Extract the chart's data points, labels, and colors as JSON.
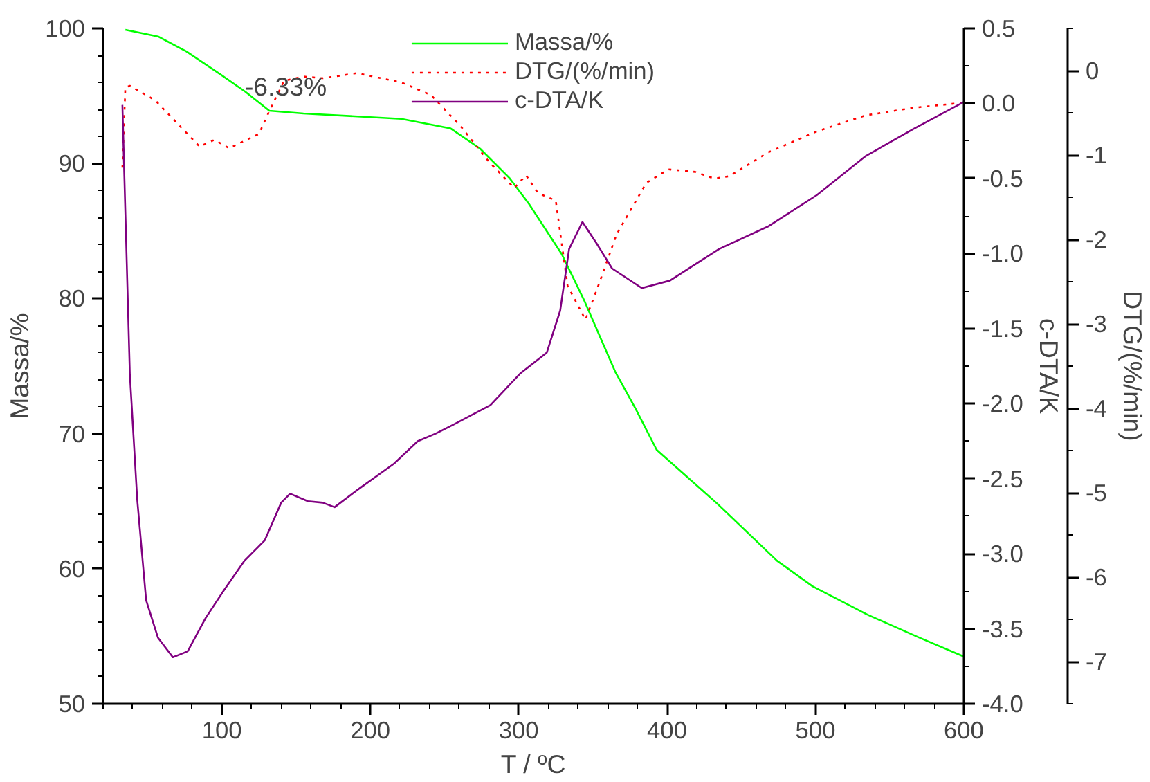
{
  "chart_data": {
    "type": "line",
    "xlabel": "T / ºC",
    "ylabel": "Massa/%",
    "y2label": "c-DTA/K",
    "y3label": "DTG/(%/min)",
    "xlim": [
      20,
      600
    ],
    "xticks": [
      100,
      200,
      300,
      400,
      500,
      600
    ],
    "ylim": [
      50,
      100
    ],
    "yticks": [
      50,
      60,
      70,
      80,
      90,
      100
    ],
    "y2lim": [
      -4.0,
      0.5
    ],
    "y2ticks": [
      {
        "value": -4,
        "label": "-4.0"
      },
      {
        "value": -3.5,
        "label": "-3.5"
      },
      {
        "value": -3,
        "label": "-3.0"
      },
      {
        "value": -2.5,
        "label": "-2.5"
      },
      {
        "value": -2,
        "label": "-2.0"
      },
      {
        "value": -1.5,
        "label": "-1.5"
      },
      {
        "value": -1,
        "label": "-1.0"
      },
      {
        "value": -0.5,
        "label": "-0.5"
      },
      {
        "value": 0,
        "label": "0.0"
      },
      {
        "value": 0.5,
        "label": "0.5"
      }
    ],
    "y3lim": [
      -7.5,
      0.5
    ],
    "y3ticks": [
      -7,
      -6,
      -5,
      -4,
      -3,
      -2,
      -1,
      0
    ],
    "grid": false,
    "legend": "top",
    "marker": "none",
    "annotations": [
      "-6.33%"
    ],
    "series": [
      {
        "name": "Massa/%",
        "color": "#00ff00",
        "line_style": "solid",
        "x": [
          35,
          57,
          76,
          99,
          116,
          132,
          155,
          221,
          254,
          274,
          294,
          307,
          329,
          344,
          365,
          379,
          393,
          434,
          474,
          498,
          535,
          570,
          600
        ],
        "values": [
          99.9,
          99.4,
          98.3,
          96.6,
          95.3,
          93.9,
          93.7,
          93.3,
          92.6,
          91.1,
          88.9,
          87.0,
          83.3,
          79.9,
          74.6,
          71.8,
          68.8,
          64.8,
          60.6,
          58.7,
          56.6,
          54.9,
          53.5
        ]
      },
      {
        "name": "DTG/(%/min)",
        "color": "#ff0000",
        "line_style": "dotted",
        "axis": "y3",
        "x": [
          33,
          35,
          38,
          55,
          85,
          95,
          105,
          125,
          132,
          142,
          155,
          168,
          191,
          221,
          241,
          261,
          280,
          297,
          305,
          313,
          325,
          333,
          345,
          353,
          366,
          386,
          401,
          419,
          432,
          442,
          468,
          501,
          534,
          566,
          600
        ],
        "values": [
          -1.15,
          -0.2,
          -0.18,
          -0.35,
          -0.9,
          -0.82,
          -0.92,
          -0.75,
          -0.48,
          -0.12,
          -0.07,
          -0.09,
          -0.03,
          -0.14,
          -0.29,
          -0.66,
          -1.08,
          -1.39,
          -1.24,
          -1.45,
          -1.54,
          -2.55,
          -2.95,
          -2.58,
          -1.94,
          -1.33,
          -1.17,
          -1.2,
          -1.28,
          -1.25,
          -0.97,
          -0.72,
          -0.53,
          -0.44,
          -0.38
        ]
      },
      {
        "name": "c-DTA/K",
        "color": "#800080",
        "line_style": "solid",
        "axis": "y2",
        "x": [
          33,
          38,
          43,
          49,
          57,
          67,
          77,
          89,
          101,
          115,
          129,
          140,
          146,
          158,
          168,
          176,
          192,
          216,
          232,
          244,
          256,
          281,
          301,
          319,
          328,
          334,
          343,
          353,
          363,
          383,
          402,
          435,
          468,
          501,
          534,
          566,
          600
        ],
        "values": [
          -0.01,
          -1.8,
          -2.64,
          -3.31,
          -3.56,
          -3.69,
          -3.65,
          -3.43,
          -3.25,
          -3.05,
          -2.91,
          -2.66,
          -2.6,
          -2.65,
          -2.66,
          -2.69,
          -2.57,
          -2.4,
          -2.25,
          -2.2,
          -2.14,
          -2.01,
          -1.8,
          -1.66,
          -1.38,
          -0.97,
          -0.79,
          -0.94,
          -1.1,
          -1.23,
          -1.18,
          -0.97,
          -0.82,
          -0.61,
          -0.35,
          -0.17,
          0.01
        ]
      }
    ]
  }
}
